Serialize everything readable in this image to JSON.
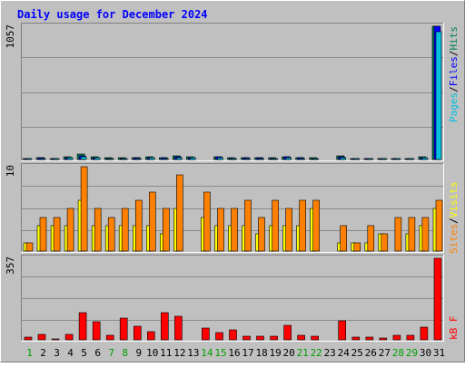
{
  "chart_data": {
    "type": "bar",
    "title": "Daily usage for December 2024",
    "colors": {
      "background": "#c0c0c0",
      "frame_dark": "#808080",
      "frame_light": "#ffffff",
      "title": "#0000ff",
      "gridline": "#8c8c8c",
      "weekday_label": "#0000ff",
      "weekend_label": "#00a000",
      "hits": "#00805c",
      "files": "#0000ff",
      "pages": "#00c0e0",
      "visits": "#ffff00",
      "sites": "#ff8000",
      "kbytes": "#ff0000"
    },
    "days": [
      "1",
      "2",
      "3",
      "4",
      "5",
      "6",
      "7",
      "8",
      "9",
      "10",
      "11",
      "12",
      "13",
      "14",
      "15",
      "16",
      "17",
      "18",
      "19",
      "20",
      "21",
      "22",
      "23",
      "24",
      "25",
      "26",
      "27",
      "28",
      "29",
      "30",
      "31"
    ],
    "weekend_days": [
      "1",
      "7",
      "8",
      "14",
      "15",
      "21",
      "22",
      "28",
      "29"
    ],
    "panels": [
      {
        "name": "hits-files-pages",
        "ymax_label": "1057",
        "ymax": 1057,
        "series": [
          {
            "name": "Hits",
            "values": [
              10,
              14,
              10,
              22,
              44,
              20,
              12,
              12,
              15,
              20,
              15,
              30,
              20,
              0,
              24,
              12,
              16,
              16,
              12,
              22,
              16,
              12,
              0,
              30,
              10,
              4,
              8,
              8,
              10,
              22,
              1057
            ]
          },
          {
            "name": "Files",
            "values": [
              8,
              12,
              8,
              16,
              30,
              16,
              10,
              10,
              12,
              16,
              12,
              22,
              16,
              0,
              18,
              10,
              12,
              12,
              10,
              18,
              12,
              10,
              0,
              22,
              8,
              3,
              6,
              6,
              8,
              16,
              1057
            ]
          },
          {
            "name": "Pages",
            "values": [
              6,
              10,
              6,
              12,
              20,
              12,
              8,
              8,
              10,
              12,
              10,
              16,
              12,
              0,
              14,
              8,
              10,
              10,
              8,
              14,
              10,
              8,
              0,
              16,
              6,
              2,
              4,
              4,
              6,
              12,
              1015
            ]
          }
        ]
      },
      {
        "name": "visits-sites",
        "ymax_label": "10",
        "ymax": 10,
        "series": [
          {
            "name": "Visits",
            "values": [
              1,
              3,
              3,
              3,
              6,
              3,
              3,
              3,
              3,
              3,
              2,
              5,
              0,
              4,
              3,
              3,
              3,
              2,
              3,
              3,
              3,
              5,
              0,
              1,
              1,
              1,
              2,
              0,
              2,
              3,
              5
            ]
          },
          {
            "name": "Sites",
            "values": [
              1,
              4,
              4,
              5,
              10,
              5,
              4,
              5,
              6,
              7,
              5,
              9,
              0,
              7,
              5,
              5,
              6,
              4,
              6,
              5,
              6,
              6,
              0,
              3,
              1,
              3,
              2,
              4,
              4,
              4,
              6
            ]
          }
        ]
      },
      {
        "name": "kbytes",
        "ymax_label": "357",
        "ymax": 357,
        "series": [
          {
            "name": "kB F",
            "values": [
              12,
              25,
              5,
              25,
              120,
              80,
              20,
              95,
              60,
              35,
              120,
              105,
              0,
              50,
              30,
              45,
              15,
              15,
              15,
              65,
              18,
              15,
              0,
              85,
              10,
              10,
              8,
              20,
              20,
              55,
              357
            ]
          }
        ]
      }
    ],
    "legend": [
      {
        "panel": 0,
        "text": "Pages",
        "color_key": "pages"
      },
      {
        "panel": 0,
        "text": "/",
        "color_key": "sep"
      },
      {
        "panel": 0,
        "text": "Files",
        "color_key": "files"
      },
      {
        "panel": 0,
        "text": "/",
        "color_key": "sep"
      },
      {
        "panel": 0,
        "text": "Hits",
        "color_key": "hits"
      },
      {
        "panel": 1,
        "text": "Sites",
        "color_key": "sites"
      },
      {
        "panel": 1,
        "text": "/",
        "color_key": "sep"
      },
      {
        "panel": 1,
        "text": "Visits",
        "color_key": "visits"
      },
      {
        "panel": 2,
        "text": "kB F",
        "color_key": "kbytes"
      }
    ]
  }
}
